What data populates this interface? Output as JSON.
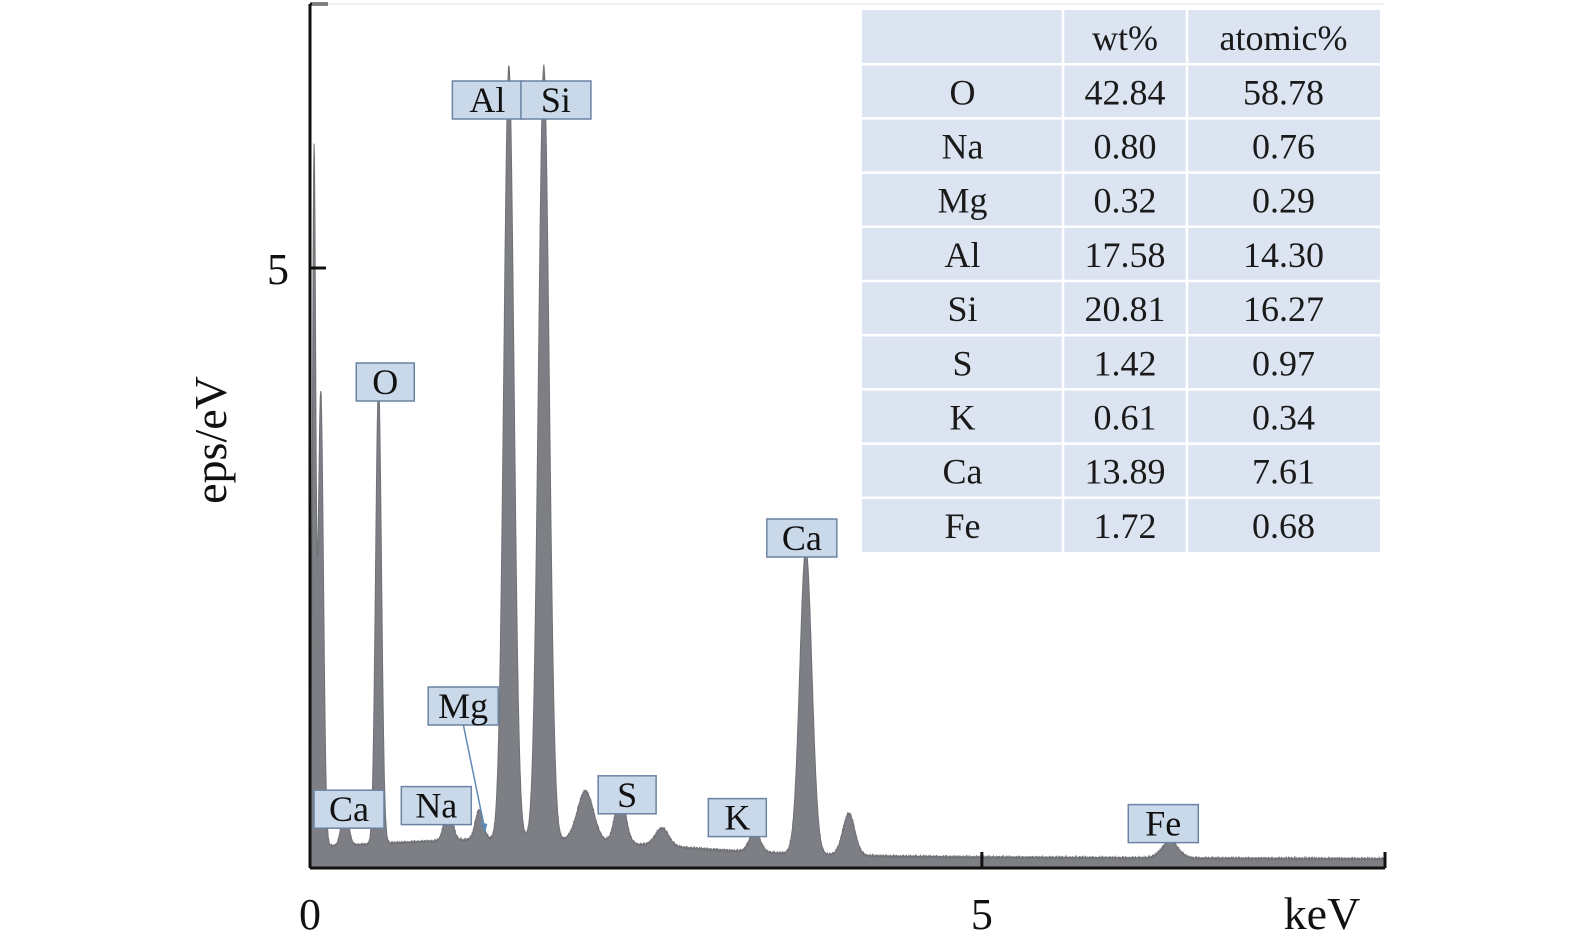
{
  "chart_data": {
    "type": "area",
    "xlabel": "keV",
    "ylabel": "eps/eV",
    "xlim": [
      0,
      8
    ],
    "ylim": [
      0,
      7.2
    ],
    "x_ticks": [
      {
        "value": 0,
        "label": "0"
      },
      {
        "value": 5,
        "label": "5"
      }
    ],
    "y_ticks": [
      {
        "value": 5,
        "label": "5"
      }
    ],
    "peaks": [
      {
        "element": "Ca",
        "x": 0.26,
        "height": 0.35,
        "width": 0.025
      },
      {
        "element": "O",
        "x": 0.51,
        "height": 3.83,
        "width": 0.022
      },
      {
        "element": "Na",
        "x": 1.03,
        "height": 0.3,
        "width": 0.03
      },
      {
        "element": "Mg",
        "x": 1.26,
        "height": 0.25,
        "width": 0.03
      },
      {
        "element": "Al",
        "x": 1.48,
        "height": 6.45,
        "width": 0.038
      },
      {
        "element": "Si",
        "x": 1.74,
        "height": 6.45,
        "width": 0.04
      },
      {
        "element": "S",
        "x": 2.31,
        "height": 0.4,
        "width": 0.04
      },
      {
        "element": "K",
        "x": 3.31,
        "height": 0.17,
        "width": 0.04
      },
      {
        "element": "Ca",
        "x": 3.69,
        "height": 2.55,
        "width": 0.045
      },
      {
        "element": "Ca",
        "x": 4.01,
        "height": 0.35,
        "width": 0.045
      },
      {
        "element": "Fe",
        "x": 6.4,
        "height": 0.14,
        "width": 0.06
      }
    ],
    "extra_bumps": [
      {
        "x": 0.03,
        "height": 5.7,
        "width": 0.012
      },
      {
        "x": 0.08,
        "height": 3.8,
        "width": 0.02
      },
      {
        "x": 2.05,
        "height": 0.42,
        "width": 0.06
      },
      {
        "x": 2.62,
        "height": 0.15,
        "width": 0.05
      }
    ],
    "tags": [
      {
        "label": "Al",
        "tx": 1.32,
        "ty": 6.4,
        "px": 1.48
      },
      {
        "label": "Si",
        "tx": 1.83,
        "ty": 6.4,
        "px": 1.74
      },
      {
        "label": "O",
        "tx": 0.56,
        "ty": 4.05,
        "px": 0.51
      },
      {
        "label": "Ca",
        "tx": 3.66,
        "ty": 2.75,
        "px": 3.69
      },
      {
        "label": "Mg",
        "tx": 1.14,
        "ty": 1.35,
        "px": 1.26,
        "arrow": true
      },
      {
        "label": "Ca",
        "tx": 0.29,
        "ty": 0.49,
        "px": 0.26
      },
      {
        "label": "Na",
        "tx": 0.94,
        "ty": 0.52,
        "px": 1.03
      },
      {
        "label": "S",
        "tx": 2.36,
        "ty": 0.61,
        "px": 2.31
      },
      {
        "label": "K",
        "tx": 3.18,
        "ty": 0.42,
        "px": 3.31
      },
      {
        "label": "Fe",
        "tx": 6.35,
        "ty": 0.37,
        "px": 6.4
      }
    ],
    "table": {
      "headers": [
        "",
        "wt%",
        "atomic%"
      ],
      "rows": [
        [
          "O",
          "42.84",
          "58.78"
        ],
        [
          "Na",
          "0.80",
          "0.76"
        ],
        [
          "Mg",
          "0.32",
          "0.29"
        ],
        [
          "Al",
          "17.58",
          "14.30"
        ],
        [
          "Si",
          "20.81",
          "16.27"
        ],
        [
          "S",
          "1.42",
          "0.97"
        ],
        [
          "K",
          "0.61",
          "0.34"
        ],
        [
          "Ca",
          "13.89",
          "7.61"
        ],
        [
          "Fe",
          "1.72",
          "0.68"
        ]
      ]
    },
    "colors": {
      "spectrum": "#7d7f84",
      "tag_fill": "#cad9ea",
      "tag_stroke": "#6b84a3",
      "table_fill": "#dde4f1",
      "table_grid": "#ffffff"
    }
  }
}
